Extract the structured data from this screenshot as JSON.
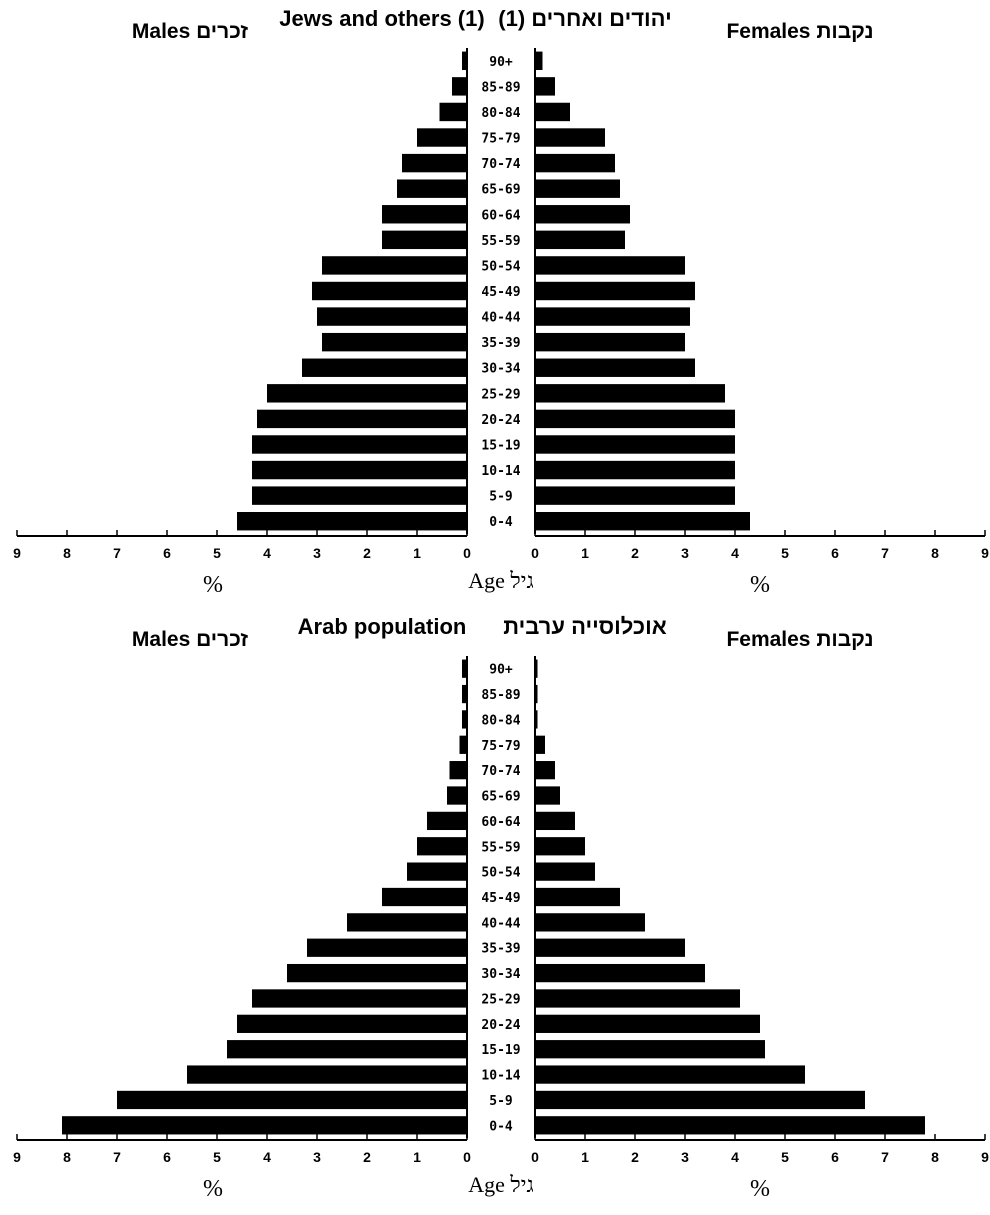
{
  "chart_data": [
    {
      "type": "bar",
      "orientation": "horizontal-pyramid",
      "title_en": "Jews and others (1)",
      "title_he": "יהודים ואחרים (1)",
      "males_label": "Males זכרים",
      "females_label": "Females נקבות",
      "age_axis_label": "Age גיל",
      "x_unit": "%",
      "xlim": [
        0,
        9
      ],
      "ticks": [
        0,
        1,
        2,
        3,
        4,
        5,
        6,
        7,
        8,
        9
      ],
      "categories": [
        "0-4",
        "5-9",
        "10-14",
        "15-19",
        "20-24",
        "25-29",
        "30-34",
        "35-39",
        "40-44",
        "45-49",
        "50-54",
        "55-59",
        "60-64",
        "65-69",
        "70-74",
        "75-79",
        "80-84",
        "85-89",
        "90+"
      ],
      "series": [
        {
          "name": "Males",
          "values": [
            4.6,
            4.3,
            4.3,
            4.3,
            4.2,
            4.0,
            3.3,
            2.9,
            3.0,
            3.1,
            2.9,
            1.7,
            1.7,
            1.4,
            1.3,
            1.0,
            0.55,
            0.3,
            0.1
          ]
        },
        {
          "name": "Females",
          "values": [
            4.3,
            4.0,
            4.0,
            4.0,
            4.0,
            3.8,
            3.2,
            3.0,
            3.1,
            3.2,
            3.0,
            1.8,
            1.9,
            1.7,
            1.6,
            1.4,
            0.7,
            0.4,
            0.15
          ]
        }
      ]
    },
    {
      "type": "bar",
      "orientation": "horizontal-pyramid",
      "title_en": "Arab population",
      "title_he": "אוכלוסייה ערבית",
      "males_label": "Males זכרים",
      "females_label": "Females נקבות",
      "age_axis_label": "Age גיל",
      "x_unit": "%",
      "xlim": [
        0,
        9
      ],
      "ticks": [
        0,
        1,
        2,
        3,
        4,
        5,
        6,
        7,
        8,
        9
      ],
      "categories": [
        "0-4",
        "5-9",
        "10-14",
        "15-19",
        "20-24",
        "25-29",
        "30-34",
        "35-39",
        "40-44",
        "45-49",
        "50-54",
        "55-59",
        "60-64",
        "65-69",
        "70-74",
        "75-79",
        "80-84",
        "85-89",
        "90+"
      ],
      "series": [
        {
          "name": "Males",
          "values": [
            8.1,
            7.0,
            5.6,
            4.8,
            4.6,
            4.3,
            3.6,
            3.2,
            2.4,
            1.7,
            1.2,
            1.0,
            0.8,
            0.4,
            0.35,
            0.15,
            0.1,
            0.1,
            0.1
          ]
        },
        {
          "name": "Females",
          "values": [
            7.8,
            6.6,
            5.4,
            4.6,
            4.5,
            4.1,
            3.4,
            3.0,
            2.2,
            1.7,
            1.2,
            1.0,
            0.8,
            0.5,
            0.4,
            0.2,
            0.05,
            0.05,
            0.05
          ]
        }
      ]
    }
  ]
}
